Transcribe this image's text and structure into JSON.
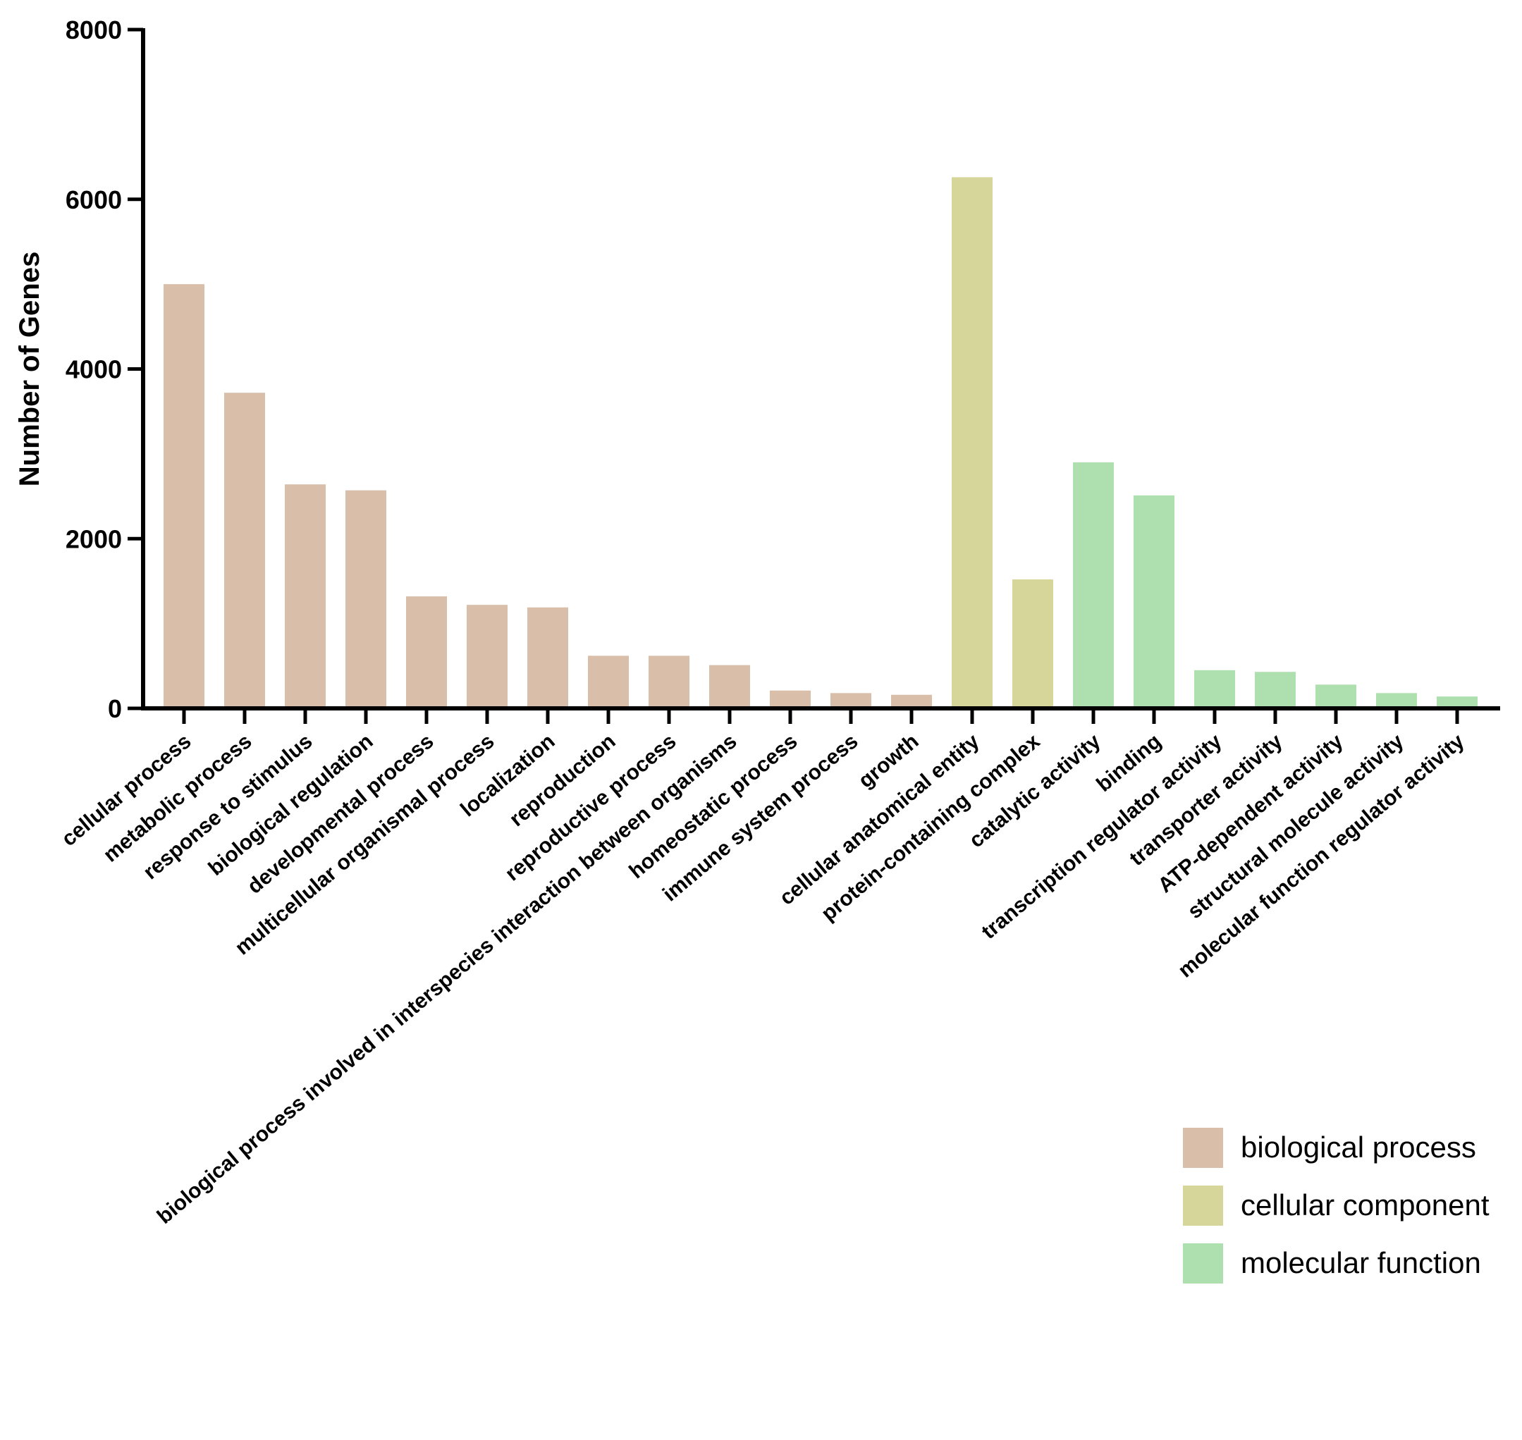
{
  "chart_data": {
    "type": "bar",
    "title": "",
    "xlabel": "",
    "ylabel": "Number of Genes",
    "ylim": [
      0,
      8000
    ],
    "yticks": [
      0,
      2000,
      4000,
      6000,
      8000
    ],
    "grid": false,
    "legend_position": "bottom-right",
    "groups": [
      {
        "name": "biological process",
        "color": "#D9BEA9"
      },
      {
        "name": "cellular component",
        "color": "#D6D69B"
      },
      {
        "name": "molecular function",
        "color": "#AEDFAE"
      }
    ],
    "categories": [
      "cellular process",
      "metabolic process",
      "response to stimulus",
      "biological regulation",
      "developmental process",
      "multicellular organismal process",
      "localization",
      "reproduction",
      "reproductive process",
      "biological process involved in interspecies interaction between organisms",
      "homeostatic process",
      "immune system process",
      "growth",
      "cellular anatomical entity",
      "protein-containing complex",
      "catalytic activity",
      "binding",
      "transcription regulator activity",
      "transporter activity",
      "ATP-dependent activity",
      "structural molecule activity",
      "molecular function regulator activity"
    ],
    "values": [
      5000,
      3720,
      2640,
      2570,
      1320,
      1220,
      1190,
      620,
      620,
      510,
      210,
      180,
      160,
      6260,
      1520,
      2900,
      2510,
      450,
      430,
      280,
      180,
      140
    ],
    "group_index": [
      0,
      0,
      0,
      0,
      0,
      0,
      0,
      0,
      0,
      0,
      0,
      0,
      0,
      1,
      1,
      2,
      2,
      2,
      2,
      2,
      2,
      2
    ]
  }
}
